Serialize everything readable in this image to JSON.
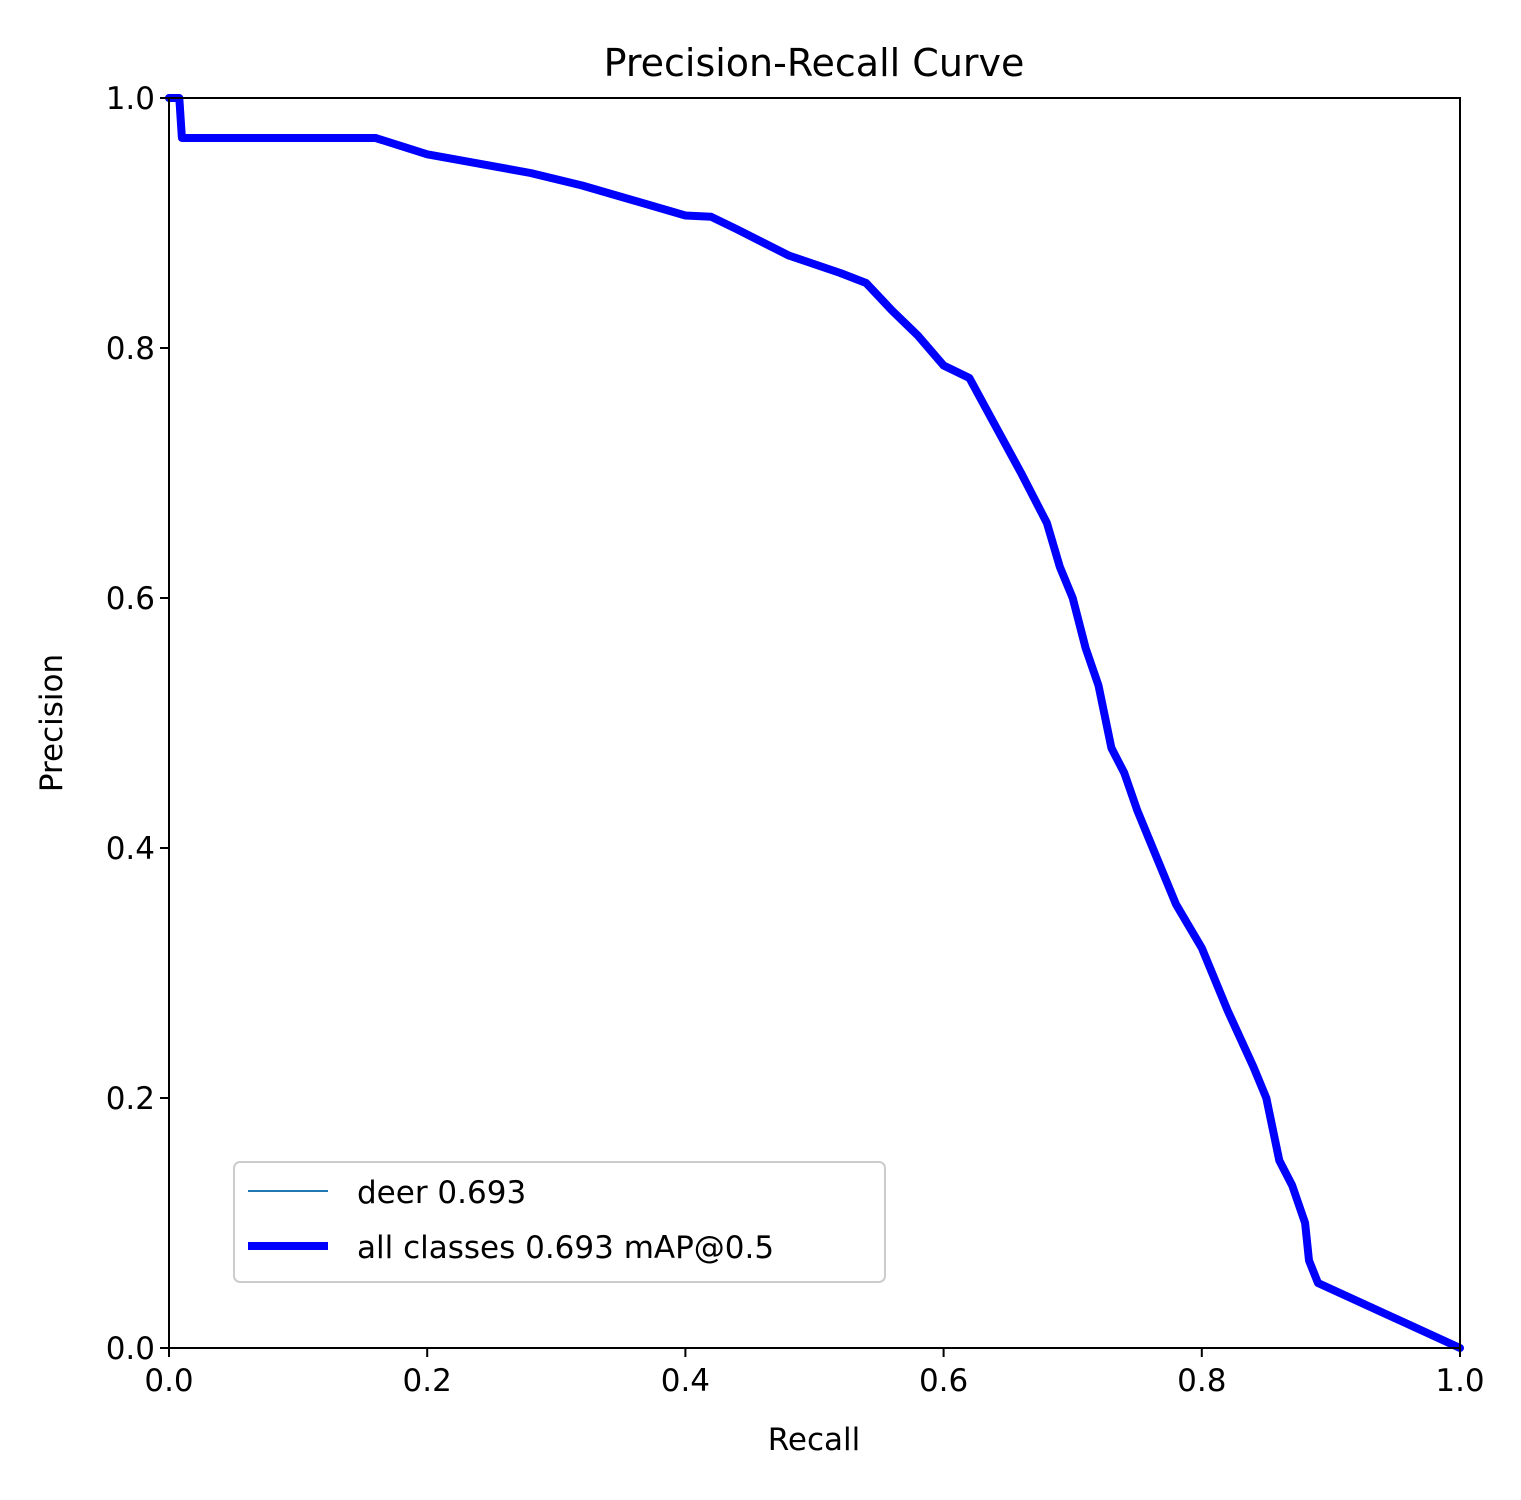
{
  "chart_data": {
    "type": "line",
    "title": "Precision-Recall Curve",
    "xlabel": "Recall",
    "ylabel": "Precision",
    "xlim": [
      0,
      1
    ],
    "ylim": [
      0,
      1
    ],
    "x_ticks": [
      "0.0",
      "0.2",
      "0.4",
      "0.6",
      "0.8",
      "1.0"
    ],
    "y_ticks": [
      "0.0",
      "0.2",
      "0.4",
      "0.6",
      "0.8",
      "1.0"
    ],
    "grid": false,
    "legend_position": "lower-left",
    "series": [
      {
        "name": "deer 0.693",
        "color": "#1f77b4",
        "x": [
          0.0,
          0.008,
          0.01,
          0.16,
          0.2,
          0.28,
          0.32,
          0.36,
          0.4,
          0.42,
          0.44,
          0.48,
          0.52,
          0.54,
          0.56,
          0.58,
          0.6,
          0.62,
          0.64,
          0.66,
          0.68,
          0.69,
          0.7,
          0.71,
          0.72,
          0.73,
          0.74,
          0.75,
          0.76,
          0.78,
          0.8,
          0.82,
          0.84,
          0.85,
          0.86,
          0.87,
          0.88,
          0.883,
          0.89,
          1.0
        ],
        "y": [
          1.0,
          1.0,
          0.968,
          0.968,
          0.955,
          0.94,
          0.93,
          0.918,
          0.906,
          0.905,
          0.895,
          0.874,
          0.86,
          0.852,
          0.83,
          0.81,
          0.786,
          0.776,
          0.738,
          0.7,
          0.66,
          0.625,
          0.6,
          0.56,
          0.53,
          0.48,
          0.46,
          0.43,
          0.405,
          0.355,
          0.32,
          0.27,
          0.225,
          0.2,
          0.15,
          0.13,
          0.1,
          0.07,
          0.052,
          0.0
        ]
      },
      {
        "name": "all classes 0.693 mAP@0.5",
        "color": "#0000ff",
        "x": [
          0.0,
          0.008,
          0.01,
          0.16,
          0.2,
          0.28,
          0.32,
          0.36,
          0.4,
          0.42,
          0.44,
          0.48,
          0.52,
          0.54,
          0.56,
          0.58,
          0.6,
          0.62,
          0.64,
          0.66,
          0.68,
          0.69,
          0.7,
          0.71,
          0.72,
          0.73,
          0.74,
          0.75,
          0.76,
          0.78,
          0.8,
          0.82,
          0.84,
          0.85,
          0.86,
          0.87,
          0.88,
          0.883,
          0.89,
          1.0
        ],
        "y": [
          1.0,
          1.0,
          0.968,
          0.968,
          0.955,
          0.94,
          0.93,
          0.918,
          0.906,
          0.905,
          0.895,
          0.874,
          0.86,
          0.852,
          0.83,
          0.81,
          0.786,
          0.776,
          0.738,
          0.7,
          0.66,
          0.625,
          0.6,
          0.56,
          0.53,
          0.48,
          0.46,
          0.43,
          0.405,
          0.355,
          0.32,
          0.27,
          0.225,
          0.2,
          0.15,
          0.13,
          0.1,
          0.07,
          0.052,
          0.0
        ]
      }
    ]
  }
}
